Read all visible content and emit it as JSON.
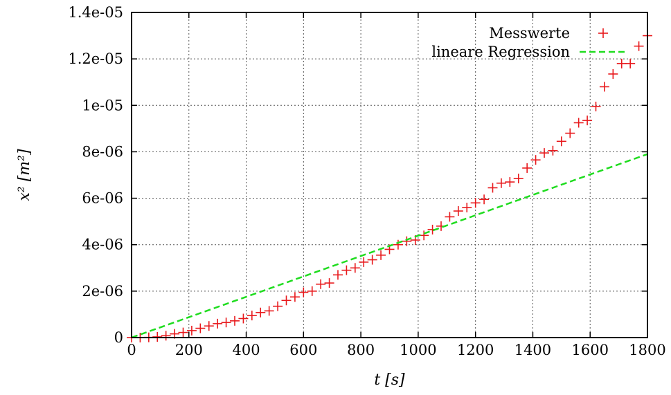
{
  "chart_data": {
    "type": "scatter",
    "xlabel": "t [s]",
    "ylabel": "x² [m²]",
    "xlim": [
      0,
      1800
    ],
    "ylim": [
      0,
      1.4e-05
    ],
    "x_ticks": [
      "0",
      "200",
      "400",
      "600",
      "800",
      "1000",
      "1200",
      "1400",
      "1600",
      "1800"
    ],
    "y_ticks": [
      "0",
      "2e-06",
      "4e-06",
      "6e-06",
      "8e-06",
      "1e-05",
      "1.2e-05",
      "1.4e-05"
    ],
    "grid": true,
    "legend_position": "top-right",
    "series": [
      {
        "name": "Messwerte",
        "kind": "points",
        "marker": "plus",
        "color": "#e8191c",
        "x": [
          0,
          30,
          60,
          90,
          120,
          150,
          180,
          210,
          240,
          270,
          300,
          330,
          360,
          390,
          420,
          450,
          480,
          510,
          540,
          570,
          600,
          630,
          660,
          690,
          720,
          750,
          780,
          810,
          840,
          870,
          900,
          930,
          960,
          990,
          1020,
          1050,
          1080,
          1110,
          1140,
          1170,
          1200,
          1230,
          1260,
          1290,
          1320,
          1350,
          1380,
          1410,
          1440,
          1470,
          1500,
          1530,
          1560,
          1590,
          1620,
          1650,
          1680,
          1710,
          1740,
          1770,
          1800
        ],
        "y": [
          0,
          0,
          1e-08,
          3e-08,
          8e-08,
          1.6e-07,
          2.2e-07,
          3e-07,
          4e-07,
          5e-07,
          6e-07,
          6.5e-07,
          7.2e-07,
          8.2e-07,
          9.5e-07,
          1.08e-06,
          1.15e-06,
          1.35e-06,
          1.6e-06,
          1.75e-06,
          1.95e-06,
          2e-06,
          2.3e-06,
          2.35e-06,
          2.7e-06,
          2.9e-06,
          3e-06,
          3.25e-06,
          3.35e-06,
          3.55e-06,
          3.8e-06,
          4e-06,
          4.15e-06,
          4.2e-06,
          4.4e-06,
          4.65e-06,
          4.8e-06,
          5.2e-06,
          5.45e-06,
          5.6e-06,
          5.8e-06,
          5.95e-06,
          6.45e-06,
          6.65e-06,
          6.7e-06,
          6.85e-06,
          7.3e-06,
          7.65e-06,
          7.95e-06,
          8.05e-06,
          8.45e-06,
          8.8e-06,
          9.25e-06,
          9.35e-06,
          9.95e-06,
          1.08e-05,
          1.135e-05,
          1.18e-05,
          1.18e-05,
          1.255e-05,
          1.3e-05
        ]
      },
      {
        "name": "lineare Regression",
        "kind": "line",
        "dash": true,
        "color": "#1fdc1f",
        "x": [
          0,
          1800
        ],
        "y": [
          0,
          7.9e-06
        ]
      }
    ]
  }
}
